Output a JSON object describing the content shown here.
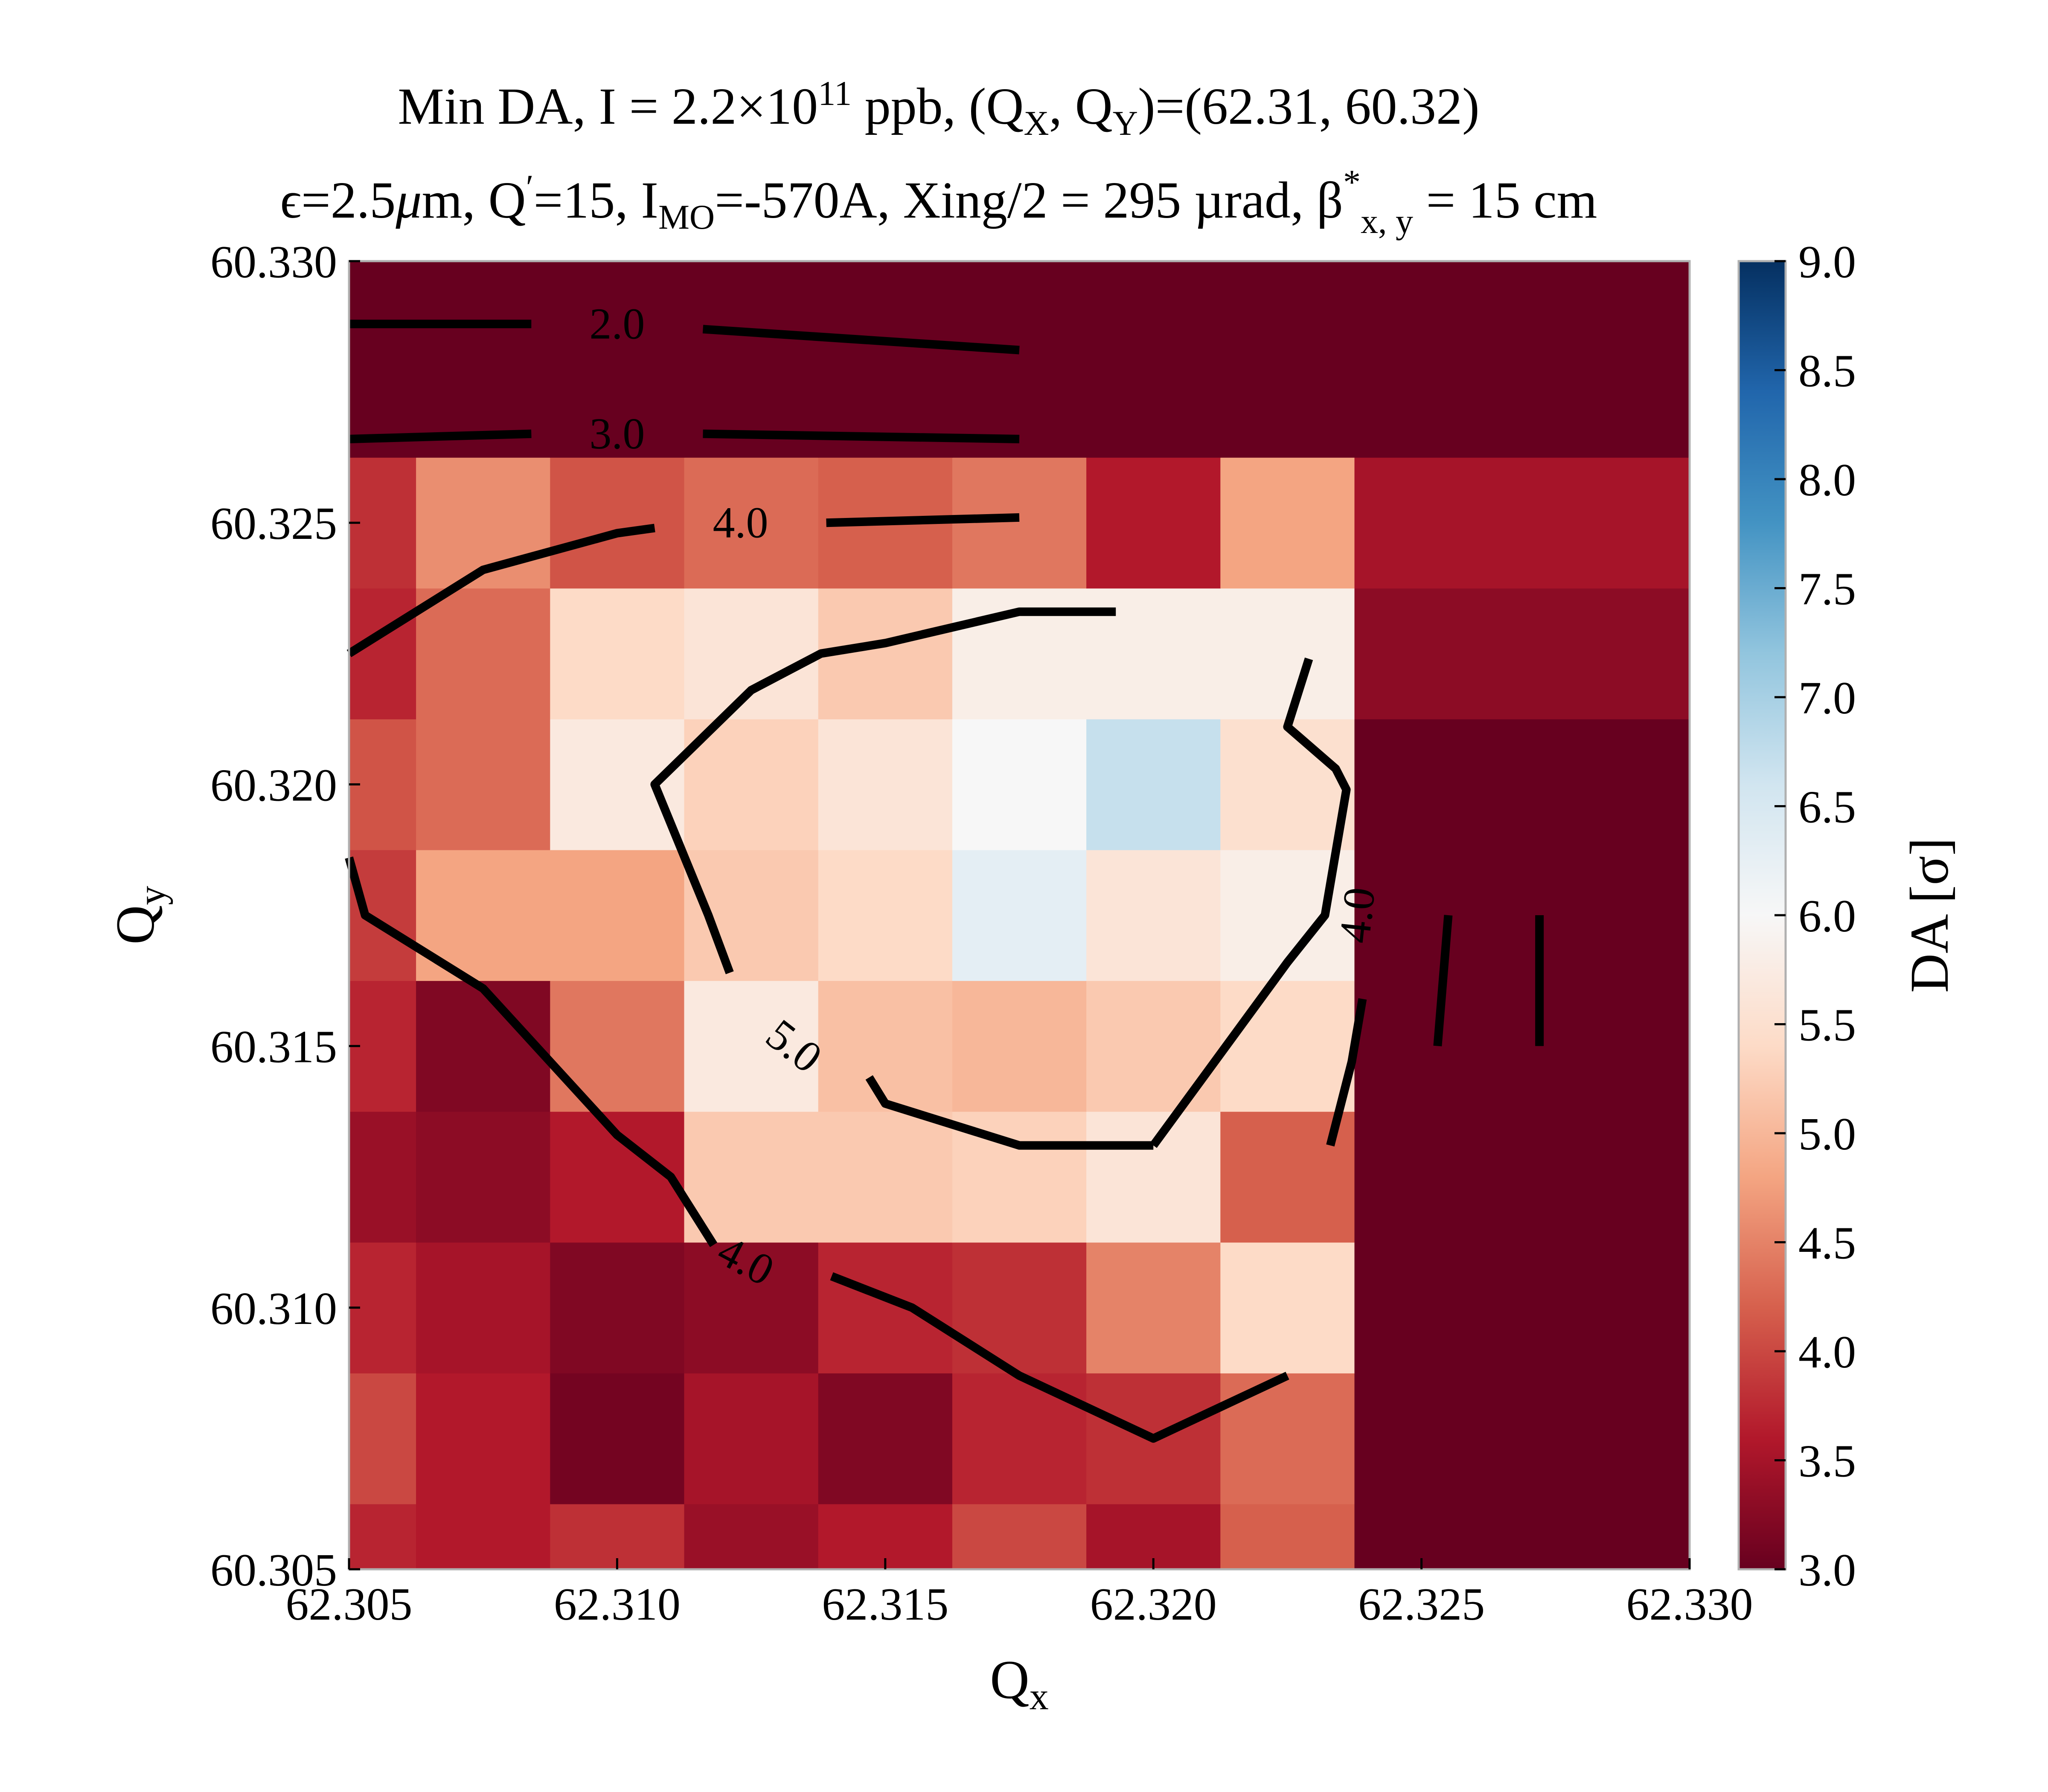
{
  "chart_data": {
    "type": "heatmap",
    "title_line1": {
      "pre": "Min DA, I = 2.2×10",
      "exp": "11",
      "mid": " ppb, (Q",
      "sub1": "X",
      "mid2": ", Q",
      "sub2": "Y",
      "post": ")=(62.31, 60.32)"
    },
    "title_line2": {
      "a": "ϵ=2.5",
      "mu": "μ",
      "b": "m, Q",
      "prime": "′",
      "c": "=15, I",
      "sub_mo": "MO",
      "d": "=-570A, Xing/2 = 295 µrad, β",
      "star": "*",
      "sub_xy": "x, y",
      "e": " = 15 cm"
    },
    "xlabel": {
      "base": "Q",
      "sub": "x"
    },
    "ylabel": {
      "base": "Q",
      "sub": "y"
    },
    "colorbar_label": "DA [σ]",
    "xlim": [
      62.305,
      62.33
    ],
    "ylim": [
      60.305,
      60.33
    ],
    "x_ticks": [
      "62.305",
      "62.310",
      "62.315",
      "62.320",
      "62.325",
      "62.330"
    ],
    "y_ticks": [
      "60.305",
      "60.310",
      "60.315",
      "60.320",
      "60.325",
      "60.330"
    ],
    "clim": [
      3.0,
      9.0
    ],
    "colorbar_ticks": [
      "3.0",
      "3.5",
      "4.0",
      "4.5",
      "5.0",
      "5.5",
      "6.0",
      "6.5",
      "7.0",
      "7.5",
      "8.0",
      "8.5",
      "9.0"
    ],
    "colormap": "RdBu",
    "colormap_stops": [
      "#67001f",
      "#b2182b",
      "#d6604d",
      "#f4a582",
      "#fddbc7",
      "#f7f7f7",
      "#d1e5f0",
      "#92c5de",
      "#4393c3",
      "#2166ac",
      "#053061"
    ],
    "x_edges": [
      62.305,
      62.30625,
      62.30875,
      62.31125,
      62.31375,
      62.31625,
      62.31875,
      62.32125,
      62.32375,
      62.33
    ],
    "y_edges": [
      60.305,
      60.30625,
      60.30875,
      60.31125,
      60.31375,
      60.31625,
      60.31875,
      60.32125,
      60.32375,
      60.32625,
      60.33
    ],
    "values_rows_bottom_to_top": [
      [
        3.7,
        3.6,
        3.8,
        3.4,
        3.6,
        4.0,
        3.5,
        4.2,
        3.0
      ],
      [
        4.0,
        3.6,
        3.1,
        3.5,
        3.2,
        3.7,
        3.8,
        4.3,
        3.0
      ],
      [
        3.7,
        3.5,
        3.2,
        3.3,
        3.7,
        3.8,
        4.5,
        5.4,
        3.0
      ],
      [
        3.4,
        3.3,
        3.6,
        5.2,
        5.2,
        5.3,
        5.6,
        4.2,
        3.0
      ],
      [
        3.7,
        3.2,
        4.4,
        5.7,
        5.1,
        5.0,
        5.2,
        5.4,
        3.0
      ],
      [
        3.9,
        4.8,
        4.8,
        5.2,
        5.4,
        6.3,
        5.6,
        5.8,
        3.0
      ],
      [
        4.1,
        4.3,
        5.7,
        5.3,
        5.6,
        6.0,
        6.7,
        5.5,
        3.0
      ],
      [
        3.7,
        4.3,
        5.4,
        5.6,
        5.2,
        5.8,
        5.8,
        5.8,
        3.3
      ],
      [
        3.8,
        4.6,
        4.1,
        4.3,
        4.2,
        4.4,
        3.6,
        4.8,
        3.5
      ],
      [
        3.0,
        3.0,
        3.0,
        3.0,
        3.0,
        3.0,
        3.0,
        3.0,
        3.0
      ]
    ],
    "contours": [
      {
        "level": "2.0",
        "segments": [
          [
            [
              62.305,
              60.3288
            ],
            [
              62.3084,
              60.3288
            ]
          ],
          [
            [
              62.3116,
              60.3287
            ],
            [
              62.3175,
              60.3283
            ]
          ]
        ],
        "labels": [
          {
            "text": "2.0",
            "x": 62.31,
            "y": 60.3288,
            "angle": 0
          }
        ]
      },
      {
        "level": "3.0",
        "segments": [
          [
            [
              62.305,
              60.3266
            ],
            [
              62.3084,
              60.3267
            ]
          ],
          [
            [
              62.3116,
              60.3267
            ],
            [
              62.3175,
              60.3266
            ]
          ]
        ],
        "labels": [
          {
            "text": "3.0",
            "x": 62.31,
            "y": 60.3267,
            "angle": 0
          }
        ]
      },
      {
        "level": "4.0",
        "segments": [
          [
            [
              62.305,
              60.3225
            ],
            [
              62.3075,
              60.3241
            ],
            [
              62.31,
              60.3248
            ],
            [
              62.3107,
              60.3249
            ]
          ],
          [
            [
              62.3139,
              60.325
            ],
            [
              62.3175,
              60.3251
            ]
          ],
          [
            [
              62.3118,
              60.3112
            ],
            [
              62.311,
              60.3125
            ],
            [
              62.31,
              60.3133
            ],
            [
              62.3075,
              60.3161
            ],
            [
              62.3053,
              60.3175
            ],
            [
              62.305,
              60.3186
            ]
          ],
          [
            [
              62.314,
              60.3106
            ],
            [
              62.3155,
              60.31
            ],
            [
              62.3175,
              60.3087
            ],
            [
              62.32,
              60.3075
            ],
            [
              62.3225,
              60.3087
            ]
          ],
          [
            [
              62.3233,
              60.3131
            ],
            [
              62.3237,
              60.3147
            ],
            [
              62.3239,
              60.3159
            ]
          ],
          [
            [
              62.3229,
              60.3224
            ],
            [
              62.3225,
              60.3211
            ],
            [
              62.3234,
              60.3203
            ],
            [
              62.3236,
              60.3199
            ],
            [
              62.3232,
              60.3175
            ],
            [
              62.3225,
              60.3166
            ],
            [
              62.32,
              60.3131
            ]
          ]
        ],
        "labels": [
          {
            "text": "4.0",
            "x": 62.3123,
            "y": 60.325,
            "angle": 0
          },
          {
            "text": "4.0",
            "x": 62.3124,
            "y": 60.3109,
            "angle": 28
          },
          {
            "text": "4.0",
            "x": 62.3238,
            "y": 60.3175,
            "angle": -84
          }
        ]
      },
      {
        "level": "5.0",
        "segments": [
          [
            [
              62.3121,
              60.3164
            ],
            [
              62.3117,
              60.3175
            ],
            [
              62.3107,
              60.32
            ],
            [
              62.3125,
              60.3218
            ],
            [
              62.3138,
              60.3225
            ],
            [
              62.315,
              60.3227
            ],
            [
              62.3175,
              60.3233
            ],
            [
              62.3193,
              60.3233
            ]
          ],
          [
            [
              62.3147,
              60.3144
            ],
            [
              62.315,
              60.3139
            ],
            [
              62.3175,
              60.3131
            ],
            [
              62.32,
              60.3131
            ]
          ]
        ],
        "labels": [
          {
            "text": "5.0",
            "x": 62.3133,
            "y": 60.315,
            "angle": 38
          }
        ]
      },
      {
        "level": "",
        "segments": [
          [
            [
              62.3255,
              60.3175
            ],
            [
              62.3253,
              60.315
            ]
          ],
          [
            [
              62.3272,
              60.3175
            ],
            [
              62.3272,
              60.315
            ]
          ]
        ],
        "labels": []
      }
    ]
  }
}
